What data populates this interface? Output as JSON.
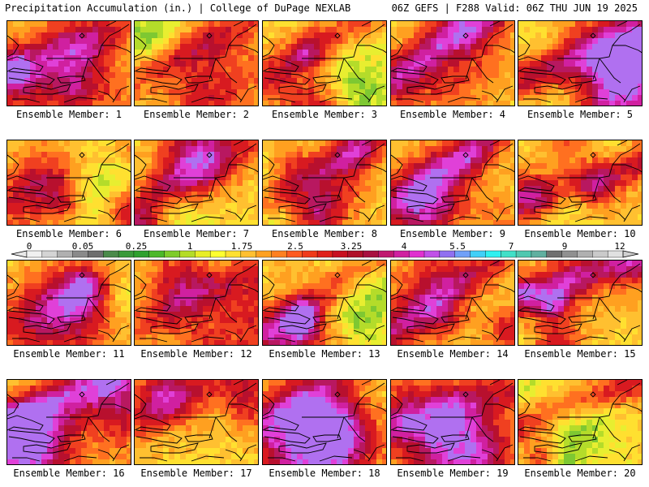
{
  "header": {
    "title": "Precipitation Accumulation (in.) | College of DuPage NEXLAB",
    "run_info": "06Z GEFS | F288 Valid: 06Z THU JUN 19 2025"
  },
  "colorbar": {
    "tick_labels": [
      "0",
      "0.05",
      "0.25",
      "1",
      "1.75",
      "2.5",
      "3.25",
      "4",
      "5.5",
      "7",
      "9",
      "12"
    ],
    "colors": [
      "#f0f0f0",
      "#d4d4d4",
      "#b0b0b0",
      "#8a8a8a",
      "#6e6e6e",
      "#4a8a4a",
      "#3a9a3a",
      "#2ea12e",
      "#4cb82a",
      "#7ecc2a",
      "#b4dc28",
      "#e8ee28",
      "#ffff30",
      "#ffe030",
      "#ffc030",
      "#ffa020",
      "#ff8020",
      "#ff5a20",
      "#f03a1a",
      "#e0201a",
      "#c81020",
      "#b0102a",
      "#a81040",
      "#c01870",
      "#d020a0",
      "#e030d0",
      "#c050e8",
      "#9070f0",
      "#70a0f8",
      "#40d0f8",
      "#30f0f0",
      "#40e0c8",
      "#50c8b0",
      "#60b0a0",
      "#707070",
      "#909090",
      "#b0b0b0",
      "#cacaca",
      "#e0e0e0"
    ]
  },
  "members": [
    {
      "label": "Ensemble Member: 1",
      "seed": 1
    },
    {
      "label": "Ensemble Member: 2",
      "seed": 2
    },
    {
      "label": "Ensemble Member: 3",
      "seed": 3
    },
    {
      "label": "Ensemble Member: 4",
      "seed": 4
    },
    {
      "label": "Ensemble Member: 5",
      "seed": 5
    },
    {
      "label": "Ensemble Member: 6",
      "seed": 6
    },
    {
      "label": "Ensemble Member: 7",
      "seed": 7
    },
    {
      "label": "Ensemble Member: 8",
      "seed": 8
    },
    {
      "label": "Ensemble Member: 9",
      "seed": 9
    },
    {
      "label": "Ensemble Member: 10",
      "seed": 10
    },
    {
      "label": "Ensemble Member: 11",
      "seed": 11
    },
    {
      "label": "Ensemble Member: 12",
      "seed": 12
    },
    {
      "label": "Ensemble Member: 13",
      "seed": 13
    },
    {
      "label": "Ensemble Member: 14",
      "seed": 14
    },
    {
      "label": "Ensemble Member: 15",
      "seed": 15
    },
    {
      "label": "Ensemble Member: 16",
      "seed": 16
    },
    {
      "label": "Ensemble Member: 17",
      "seed": 17
    },
    {
      "label": "Ensemble Member: 18",
      "seed": 18
    },
    {
      "label": "Ensemble Member: 19",
      "seed": 19
    },
    {
      "label": "Ensemble Member: 20",
      "seed": 20
    }
  ]
}
